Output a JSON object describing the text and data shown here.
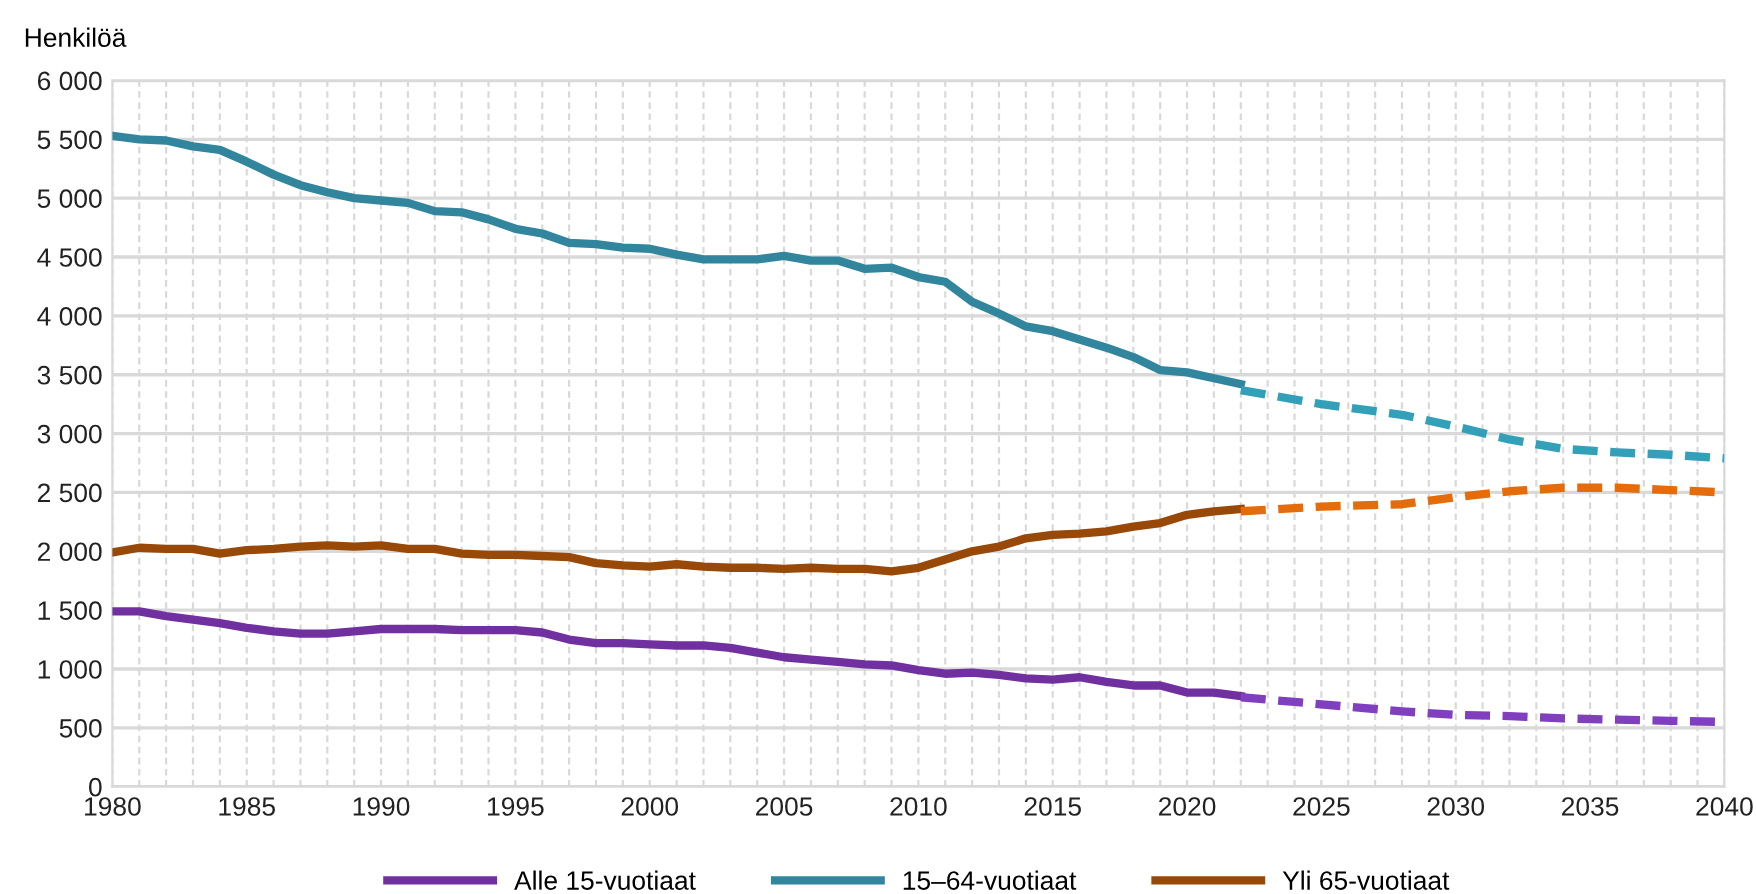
{
  "chart_data": {
    "type": "line",
    "ylabel": "Henkilöä",
    "legend": "bottom",
    "grid": true,
    "xlim": [
      1980,
      2040
    ],
    "ylim": [
      0,
      6000
    ],
    "yticks": [
      {
        "value": 0,
        "label": "0"
      },
      {
        "value": 500,
        "label": "500"
      },
      {
        "value": 1000,
        "label": "1 000"
      },
      {
        "value": 1500,
        "label": "1 500"
      },
      {
        "value": 2000,
        "label": "2 000"
      },
      {
        "value": 2500,
        "label": "2 500"
      },
      {
        "value": 3000,
        "label": "3 000"
      },
      {
        "value": 3500,
        "label": "3 500"
      },
      {
        "value": 4000,
        "label": "4 000"
      },
      {
        "value": 4500,
        "label": "4 500"
      },
      {
        "value": 5000,
        "label": "5 000"
      },
      {
        "value": 5500,
        "label": "5 500"
      },
      {
        "value": 6000,
        "label": "6 000"
      }
    ],
    "xticks": [
      1980,
      {
        "value": 1981,
        "label": null
      },
      {
        "value": 1982,
        "label": null
      },
      {
        "value": 1983,
        "label": null
      },
      {
        "value": 1984,
        "label": null
      },
      1985,
      {
        "value": 1986,
        "label": null
      },
      {
        "value": 1987,
        "label": null
      },
      {
        "value": 1988,
        "label": null
      },
      {
        "value": 1989,
        "label": null
      },
      1990,
      {
        "value": 1991,
        "label": null
      },
      {
        "value": 1992,
        "label": null
      },
      {
        "value": 1993,
        "label": null
      },
      {
        "value": 1994,
        "label": null
      },
      1995,
      {
        "value": 1996,
        "label": null
      },
      {
        "value": 1997,
        "label": null
      },
      {
        "value": 1998,
        "label": null
      },
      {
        "value": 1999,
        "label": null
      },
      2000,
      {
        "value": 2001,
        "label": null
      },
      {
        "value": 2002,
        "label": null
      },
      {
        "value": 2003,
        "label": null
      },
      {
        "value": 2004,
        "label": null
      },
      2005,
      {
        "value": 2006,
        "label": null
      },
      {
        "value": 2007,
        "label": null
      },
      {
        "value": 2008,
        "label": null
      },
      {
        "value": 2009,
        "label": null
      },
      2010,
      {
        "value": 2011,
        "label": null
      },
      {
        "value": 2012,
        "label": null
      },
      {
        "value": 2013,
        "label": null
      },
      {
        "value": 2014,
        "label": null
      },
      2015,
      {
        "value": 2016,
        "label": null
      },
      {
        "value": 2017,
        "label": null
      },
      {
        "value": 2018,
        "label": null
      },
      {
        "value": 2019,
        "label": null
      },
      2020,
      {
        "value": 2021,
        "label": null
      },
      {
        "value": 2022,
        "label": null
      },
      {
        "value": 2023,
        "label": null
      },
      {
        "value": 2024,
        "label": null
      },
      2025,
      {
        "value": 2026,
        "label": null
      },
      {
        "value": 2027,
        "label": null
      },
      {
        "value": 2028,
        "label": null
      },
      {
        "value": 2029,
        "label": null
      },
      2030,
      {
        "value": 2031,
        "label": null
      },
      {
        "value": 2032,
        "label": null
      },
      {
        "value": 2033,
        "label": null
      },
      {
        "value": 2034,
        "label": null
      },
      2035,
      {
        "value": 2036,
        "label": null
      },
      {
        "value": 2037,
        "label": null
      },
      {
        "value": 2038,
        "label": null
      },
      {
        "value": 2039,
        "label": null
      },
      2040
    ],
    "series": [
      {
        "name": "Alle 15-vuotiaat",
        "color": "#7030a0",
        "line_style": "solid",
        "x": [
          1980,
          1981,
          1982,
          1983,
          1984,
          1985,
          1986,
          1987,
          1988,
          1989,
          1990,
          1991,
          1992,
          1993,
          1994,
          1995,
          1996,
          1997,
          1998,
          1999,
          2000,
          2001,
          2002,
          2003,
          2004,
          2005,
          2006,
          2007,
          2008,
          2009,
          2010,
          2011,
          2012,
          2013,
          2014,
          2015,
          2016,
          2017,
          2018,
          2019,
          2020,
          2021,
          2022
        ],
        "values": [
          1490,
          1490,
          1450,
          1420,
          1390,
          1350,
          1320,
          1300,
          1300,
          1320,
          1340,
          1340,
          1340,
          1330,
          1330,
          1330,
          1310,
          1250,
          1220,
          1220,
          1210,
          1200,
          1200,
          1180,
          1140,
          1100,
          1080,
          1060,
          1040,
          1030,
          990,
          960,
          970,
          950,
          920,
          910,
          930,
          890,
          860,
          860,
          800,
          800,
          770
        ]
      },
      {
        "name": "15–64-vuotiaat",
        "color": "#31859c",
        "line_style": "solid",
        "x": [
          1980,
          1981,
          1982,
          1983,
          1984,
          1985,
          1986,
          1987,
          1988,
          1989,
          1990,
          1991,
          1992,
          1993,
          1994,
          1995,
          1996,
          1997,
          1998,
          1999,
          2000,
          2001,
          2002,
          2003,
          2004,
          2005,
          2006,
          2007,
          2008,
          2009,
          2010,
          2011,
          2012,
          2013,
          2014,
          2015,
          2016,
          2017,
          2018,
          2019,
          2020,
          2021,
          2022
        ],
        "values": [
          5530,
          5500,
          5490,
          5440,
          5410,
          5310,
          5200,
          5110,
          5050,
          5000,
          4980,
          4960,
          4890,
          4880,
          4820,
          4740,
          4700,
          4620,
          4610,
          4580,
          4570,
          4520,
          4480,
          4480,
          4480,
          4510,
          4470,
          4470,
          4400,
          4410,
          4330,
          4290,
          4120,
          4020,
          3910,
          3870,
          3800,
          3730,
          3650,
          3540,
          3520,
          3470,
          3420
        ]
      },
      {
        "name": "Yli 65-vuotiaat",
        "color": "#984807",
        "line_style": "solid",
        "x": [
          1980,
          1981,
          1982,
          1983,
          1984,
          1985,
          1986,
          1987,
          1988,
          1989,
          1990,
          1991,
          1992,
          1993,
          1994,
          1995,
          1996,
          1997,
          1998,
          1999,
          2000,
          2001,
          2002,
          2003,
          2004,
          2005,
          2006,
          2007,
          2008,
          2009,
          2010,
          2011,
          2012,
          2013,
          2014,
          2015,
          2016,
          2017,
          2018,
          2019,
          2020,
          2021,
          2022
        ],
        "values": [
          1990,
          2030,
          2020,
          2020,
          1980,
          2010,
          2020,
          2040,
          2050,
          2040,
          2050,
          2020,
          2020,
          1980,
          1970,
          1970,
          1960,
          1950,
          1900,
          1880,
          1870,
          1890,
          1870,
          1860,
          1860,
          1850,
          1860,
          1850,
          1850,
          1830,
          1860,
          1930,
          2000,
          2040,
          2110,
          2140,
          2150,
          2170,
          2210,
          2240,
          2310,
          2340,
          2360
        ]
      },
      {
        "color": "#7f3fbf",
        "line_style": "dashed",
        "x": [
          2022,
          2024,
          2026,
          2028,
          2030,
          2032,
          2034,
          2036,
          2038,
          2040
        ],
        "values": [
          760,
          720,
          680,
          640,
          610,
          600,
          580,
          570,
          560,
          550
        ]
      },
      {
        "color": "#31a0b8",
        "line_style": "dashed",
        "x": [
          2022,
          2025,
          2027,
          2028,
          2030,
          2032,
          2034,
          2036,
          2038,
          2040
        ],
        "values": [
          3370,
          3250,
          3190,
          3160,
          3060,
          2950,
          2870,
          2840,
          2820,
          2790
        ]
      },
      {
        "color": "#e46c0a",
        "line_style": "dashed",
        "x": [
          2022,
          2025,
          2028,
          2030,
          2032,
          2034,
          2036,
          2038,
          2040
        ],
        "values": [
          2340,
          2380,
          2400,
          2460,
          2510,
          2540,
          2540,
          2520,
          2500
        ]
      }
    ]
  }
}
